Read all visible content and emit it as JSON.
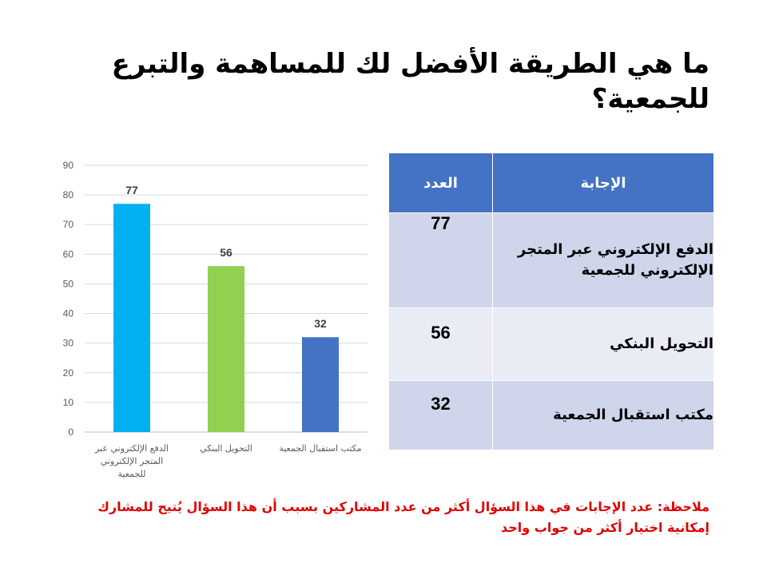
{
  "slide": {
    "title": "ما هي الطريقة الأفضل لك للمساهمة والتبرع للجمعية؟",
    "note": "ملاحظة: عدد الإجابات في هذا السؤال أكثر من عدد المشاركين بسبب أن هذا السؤال يُتيح للمشارك إمكانية اختيار أكثر من جواب واحد"
  },
  "table": {
    "headers": {
      "answer": "الإجابة",
      "count": "العدد"
    },
    "rows": [
      {
        "answer": "الدفع الإلكتروني عبر المتجر الإلكتروني للجمعية",
        "count": "77"
      },
      {
        "answer": "التحويل البنكي",
        "count": "56"
      },
      {
        "answer": "مكتب استقبال الجمعية",
        "count": "32"
      }
    ]
  },
  "chart_data": {
    "type": "bar",
    "categories": [
      "الدفع الإلكتروني عبر المتجر الإلكتروني للجمعية",
      "التحويل البنكي",
      "مكتب استقبال الجمعية"
    ],
    "category_label_lines": [
      [
        "الدفع الإلكتروني عبر",
        "المتجر الإلكتروني",
        "للجمعية"
      ],
      [
        "التحويل البنكي"
      ],
      [
        "مكتب استقبال الجمعية"
      ]
    ],
    "values": [
      77,
      56,
      32
    ],
    "bar_colors": [
      "#00b0f0",
      "#92d050",
      "#4472c4"
    ],
    "ylim": [
      0,
      90
    ],
    "yticks": [
      0,
      10,
      20,
      30,
      40,
      50,
      60,
      70,
      80,
      90
    ],
    "grid": true,
    "data_labels": true,
    "legend": "none",
    "title": "",
    "xlabel": "",
    "ylabel": ""
  }
}
